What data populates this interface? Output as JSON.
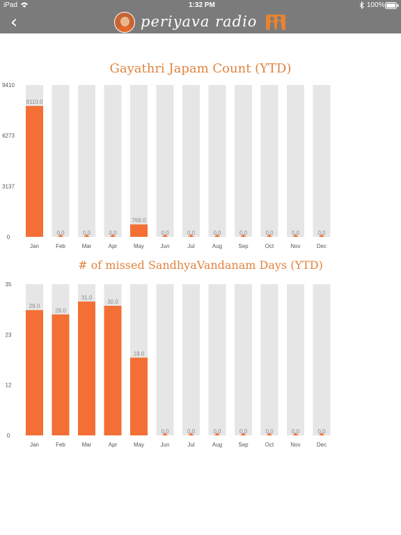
{
  "status_bar": {
    "carrier": "iPad",
    "time": "1:32 PM",
    "battery": "100%"
  },
  "nav": {
    "back_icon": "chevron-left-icon",
    "logo_text": "periyava radio"
  },
  "colors": {
    "bar": "#f36f36",
    "track": "#e6e6e6",
    "title": "#e0833f",
    "header": "#7b7b7b"
  },
  "chart_data": [
    {
      "type": "bar",
      "title": "Gayathri Japam Count (YTD)",
      "categories": [
        "Jan",
        "Feb",
        "Mar",
        "Apr",
        "May",
        "Jun",
        "Jul",
        "Aug",
        "Sep",
        "Oct",
        "Nov",
        "Dec"
      ],
      "values": [
        8110.0,
        0.0,
        0.0,
        0.0,
        769.0,
        0.0,
        0.0,
        0.0,
        0.0,
        0.0,
        0.0,
        0.0
      ],
      "data_labels": [
        "8110.0",
        "0.0",
        "0.0",
        "0.0",
        "769.0",
        "0.0",
        "0.0",
        "0.0",
        "0.0",
        "0.0",
        "0.0",
        "0.0"
      ],
      "y_ticks": [
        "9410",
        "6273",
        "3137",
        "0"
      ],
      "ylim": [
        0,
        9410
      ],
      "xlabel": "",
      "ylabel": "",
      "grid": false
    },
    {
      "type": "bar",
      "title": "# of missed SandhyaVandanam Days (YTD)",
      "categories": [
        "Jan",
        "Feb",
        "Mar",
        "Apr",
        "May",
        "Jun",
        "Jul",
        "Aug",
        "Sep",
        "Oct",
        "Nov",
        "Dec"
      ],
      "values": [
        29.0,
        28.0,
        31.0,
        30.0,
        18.0,
        0.0,
        0.0,
        0.0,
        0.0,
        0.0,
        0.0,
        0.0
      ],
      "data_labels": [
        "29.0",
        "28.0",
        "31.0",
        "30.0",
        "18.0",
        "0.0",
        "0.0",
        "0.0",
        "0.0",
        "0.0",
        "0.0",
        "0.0"
      ],
      "y_ticks": [
        "35",
        "23",
        "12",
        "0"
      ],
      "ylim": [
        0,
        35
      ],
      "xlabel": "",
      "ylabel": "",
      "grid": false
    }
  ]
}
